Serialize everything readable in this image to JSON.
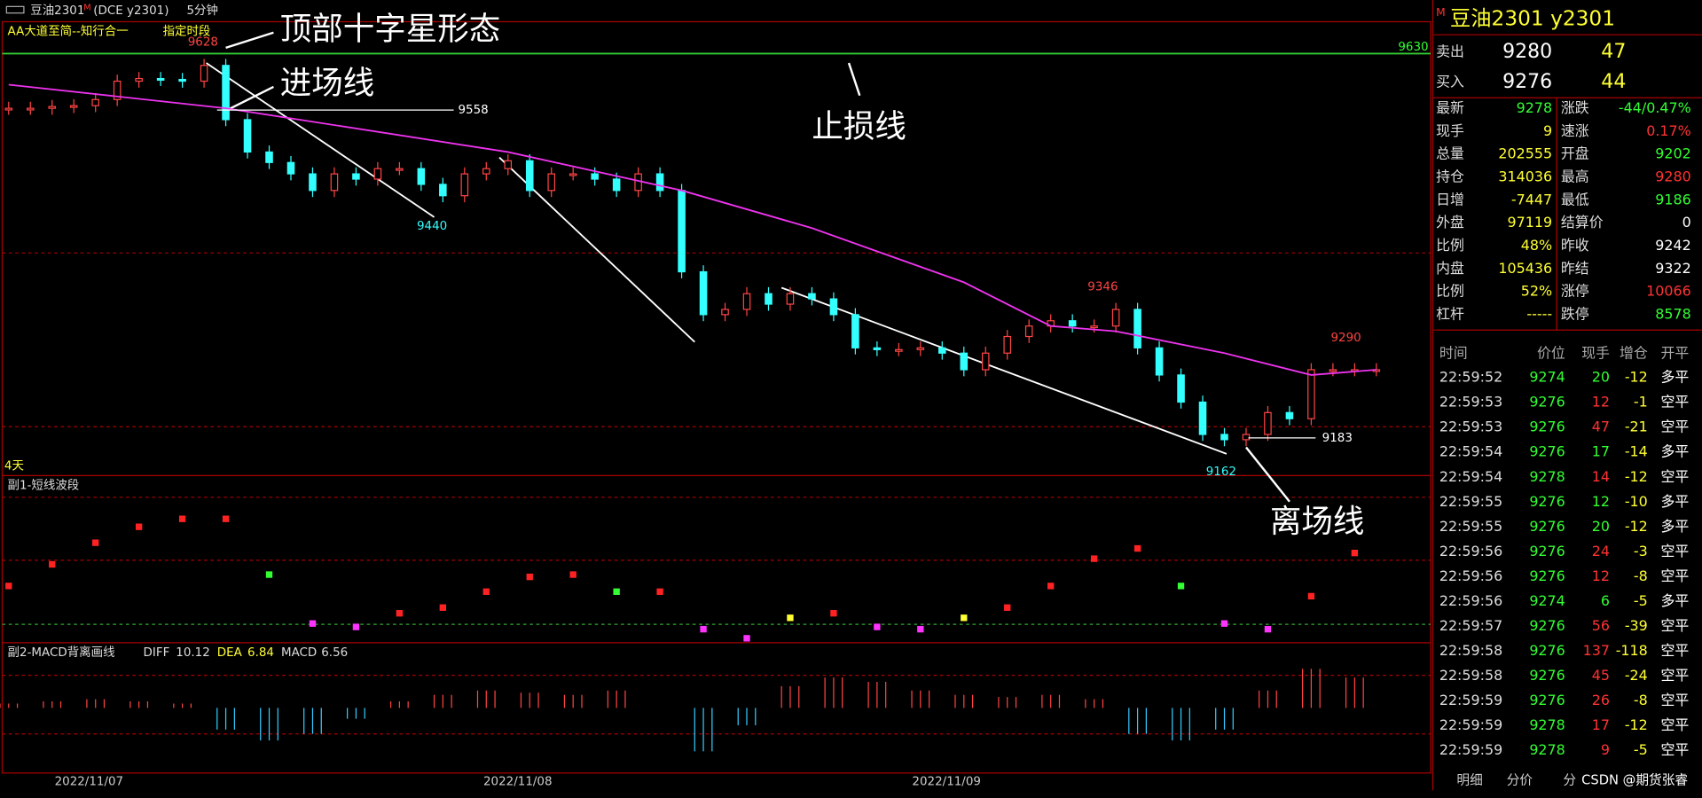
{
  "header": {
    "symbol": "豆油2301",
    "flag": "M",
    "code": "(DCE  y2301)",
    "period": "5分钟"
  },
  "main": {
    "indicator": "AA大道至简--知行合一",
    "time_range": "指定时段",
    "duration": "4天",
    "ylim": [
      9140,
      9659
    ],
    "closes": [
      9560,
      9560,
      9562,
      9563,
      9570,
      9591,
      9594,
      9593,
      9591,
      9609,
      9547,
      9510,
      9498,
      9485,
      9466,
      9485,
      9479,
      9491,
      9491,
      9473,
      9460,
      9485,
      9491,
      9500,
      9466,
      9485,
      9485,
      9479,
      9466,
      9485,
      9466,
      9373,
      9324,
      9330,
      9348,
      9336,
      9348,
      9342,
      9324,
      9286,
      9284,
      9284,
      9286,
      9280,
      9261,
      9280,
      9299,
      9311,
      9317,
      9311,
      9311,
      9330,
      9286,
      9255,
      9224,
      9187,
      9181,
      9187,
      9212,
      9205,
      9261,
      9261,
      9261,
      9261
    ],
    "ma": {
      "index": [
        0,
        10,
        23,
        31,
        37,
        44,
        48,
        51,
        56,
        60,
        63
      ],
      "values": [
        9587,
        9560,
        9510,
        9466,
        9423,
        9361,
        9311,
        9305,
        9280,
        9255,
        9261
      ]
    },
    "price_labels": [
      9628,
      9630,
      9558,
      9440,
      9346,
      9290,
      9183,
      9162
    ],
    "annotations": [
      "顶部十字星形态",
      "进场线",
      "止损线",
      "离场线"
    ]
  },
  "sub1": {
    "title": "副1-短线波段",
    "ylim": [
      -10,
      116
    ],
    "values": [
      38,
      57,
      76,
      90,
      97,
      97,
      48,
      5,
      2,
      14,
      19,
      33,
      46,
      48,
      33,
      33,
      0,
      -8,
      10,
      14,
      2,
      0,
      10,
      19,
      38,
      62,
      71,
      38,
      5,
      0,
      29,
      67
    ]
  },
  "sub2": {
    "title": "副2-MACD背离画线",
    "diff_label": "DIFF",
    "diff": 10.12,
    "dea_label": "DEA",
    "dea": 6.84,
    "macd_label": "MACD",
    "macd": 6.56,
    "ylim": [
      -30,
      20
    ],
    "histogram": [
      2,
      3,
      4,
      3,
      2,
      -10,
      -15,
      -12,
      -5,
      3,
      6,
      8,
      7,
      6,
      8,
      0,
      -20,
      -8,
      10,
      14,
      12,
      8,
      6,
      5,
      6,
      4,
      -12,
      -15,
      -10,
      8,
      18,
      14
    ]
  },
  "dates": [
    "2022/11/07",
    "2022/11/08",
    "2022/11/09"
  ],
  "quote": {
    "title": "豆油2301  y2301",
    "flag": "M",
    "sell": {
      "label": "卖出",
      "price": 9280,
      "volume": 47
    },
    "buy": {
      "label": "买入",
      "price": 9276,
      "volume": 44
    },
    "rows": [
      {
        "left_label": "最新",
        "left_value": 9278,
        "left_color": "#3f3",
        "right_label": "涨跌",
        "right_value": "-44/0.47%",
        "right_color": "#3f3"
      },
      {
        "left_label": "现手",
        "left_value": 9,
        "left_color": "#ff3",
        "right_label": "速涨",
        "right_value": "0.17%",
        "right_color": "#f33"
      },
      {
        "left_label": "总量",
        "left_value": 202555,
        "left_color": "#ff3",
        "right_label": "开盘",
        "right_value": 9202,
        "right_color": "#3f3"
      },
      {
        "left_label": "持仓",
        "left_value": 314036,
        "left_color": "#ff3",
        "right_label": "最高",
        "right_value": 9280,
        "right_color": "#f33"
      },
      {
        "left_label": "日增",
        "left_value": -7447,
        "left_color": "#ff3",
        "right_label": "最低",
        "right_value": 9186,
        "right_color": "#3f3"
      },
      {
        "left_label": "外盘",
        "left_value": 97119,
        "left_color": "#ff3",
        "right_label": "结算价",
        "right_value": 0,
        "right_color": "#fff"
      },
      {
        "left_label": "比例",
        "left_value": "48%",
        "left_color": "#ff3",
        "right_label": "昨收",
        "right_value": 9242,
        "right_color": "#fff"
      },
      {
        "left_label": "内盘",
        "left_value": 105436,
        "left_color": "#ff3",
        "right_label": "昨结",
        "right_value": 9322,
        "right_color": "#fff"
      },
      {
        "left_label": "比例",
        "left_value": "52%",
        "left_color": "#ff3",
        "right_label": "涨停",
        "right_value": 10066,
        "right_color": "#f33"
      },
      {
        "left_label": "杠杆",
        "left_value": "-----",
        "left_color": "#ff3",
        "right_label": "跌停",
        "right_value": 8578,
        "right_color": "#3f3"
      }
    ]
  },
  "ticks": {
    "columns": [
      "时间",
      "价位",
      "现手",
      "增仓",
      "开平"
    ],
    "rows": [
      [
        "22:59:52",
        9274,
        20,
        -12,
        "多平"
      ],
      [
        "22:59:53",
        9276,
        12,
        -1,
        "空平"
      ],
      [
        "22:59:53",
        9276,
        47,
        -21,
        "空平"
      ],
      [
        "22:59:54",
        9276,
        17,
        -14,
        "多平"
      ],
      [
        "22:59:54",
        9278,
        14,
        -12,
        "空平"
      ],
      [
        "22:59:55",
        9276,
        12,
        -10,
        "多平"
      ],
      [
        "22:59:55",
        9276,
        20,
        -12,
        "多平"
      ],
      [
        "22:59:56",
        9276,
        24,
        -3,
        "空平"
      ],
      [
        "22:59:56",
        9276,
        12,
        -8,
        "空平"
      ],
      [
        "22:59:56",
        9274,
        6,
        -5,
        "多平"
      ],
      [
        "22:59:57",
        9276,
        56,
        -39,
        "空平"
      ],
      [
        "22:59:58",
        9276,
        137,
        -118,
        "空平"
      ],
      [
        "22:59:58",
        9276,
        45,
        -24,
        "空平"
      ],
      [
        "22:59:59",
        9276,
        26,
        -8,
        "空平"
      ],
      [
        "22:59:59",
        9278,
        17,
        -12,
        "空平"
      ],
      [
        "22:59:59",
        9278,
        9,
        -5,
        "空平"
      ]
    ]
  },
  "tabs": [
    "明细",
    "分价",
    "分"
  ],
  "watermark": "CSDN @期货张睿"
}
